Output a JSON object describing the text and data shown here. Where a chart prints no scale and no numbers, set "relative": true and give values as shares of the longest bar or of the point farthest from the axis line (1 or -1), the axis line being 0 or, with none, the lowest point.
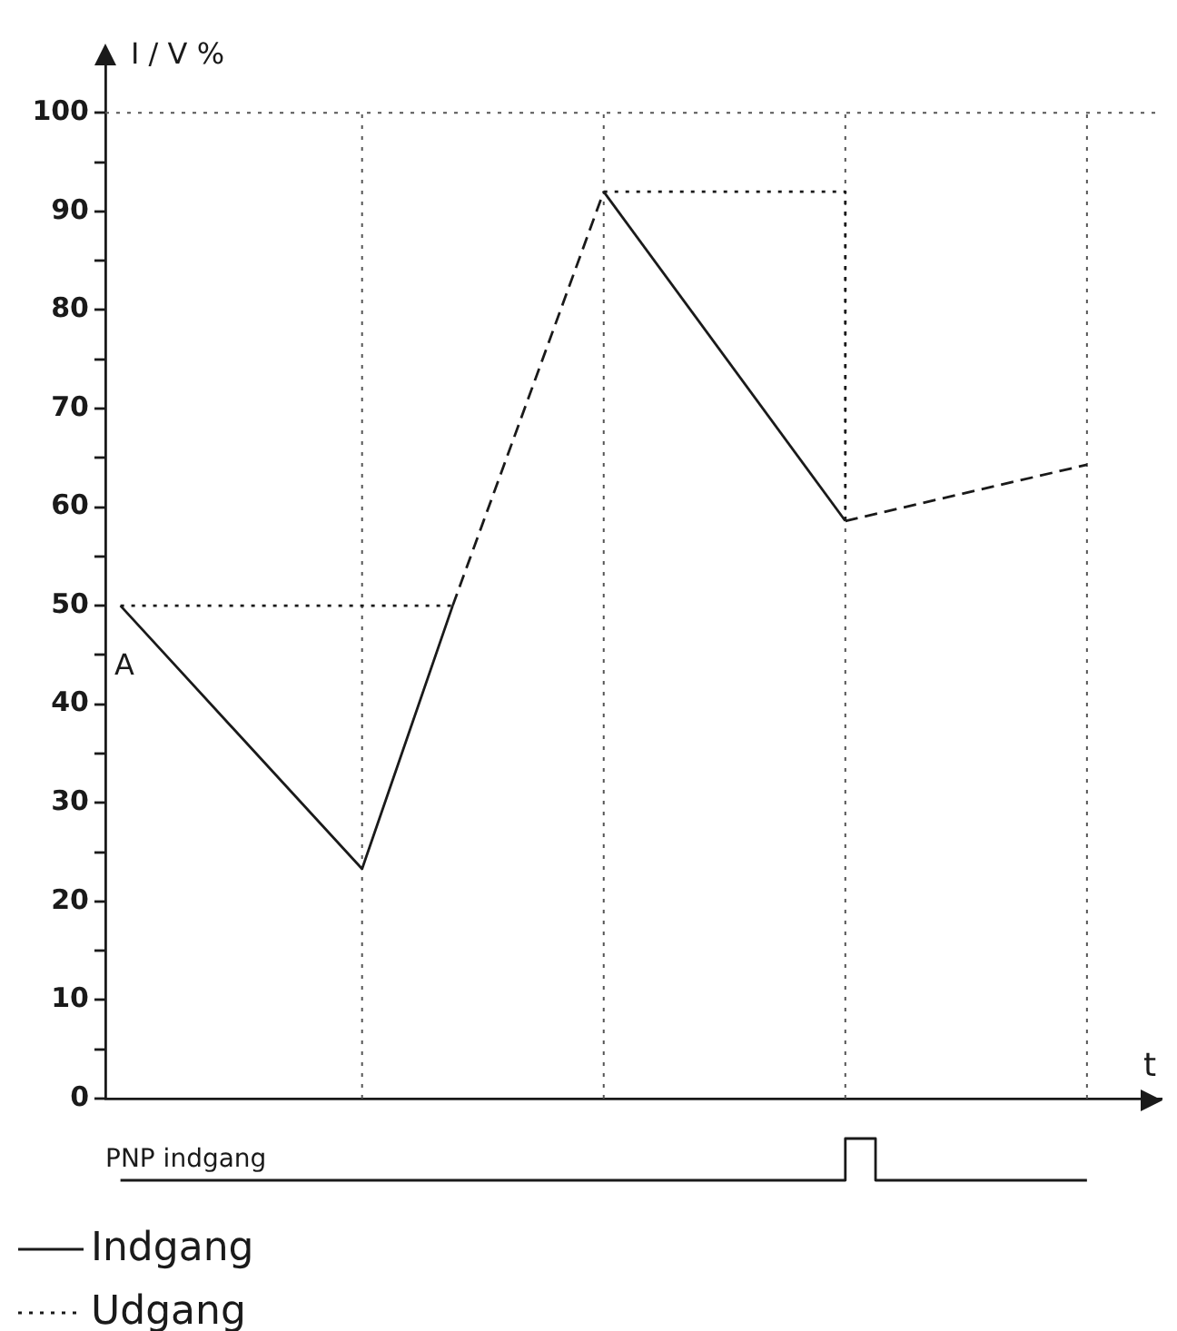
{
  "chart_data": [
    {
      "type": "line",
      "xlabel": "t",
      "ylabel": "I / V %",
      "ylim": [
        0,
        105
      ],
      "categories": [
        null,
        null,
        null,
        null,
        null,
        null,
        null,
        null,
        null,
        null,
        null,
        null,
        null,
        null,
        null,
        null,
        null,
        null,
        null,
        null,
        null,
        null,
        null,
        null,
        null,
        null,
        null,
        null,
        null,
        null,
        null,
        null,
        null,
        null,
        null
      ],
      "yticks": [
        0,
        {
          "value": 5,
          "label": null
        },
        10,
        {
          "value": 15,
          "label": null
        },
        20,
        {
          "value": 25,
          "label": null
        },
        30,
        {
          "value": 35,
          "label": null
        },
        40,
        {
          "value": 45,
          "label": null
        },
        50,
        {
          "value": 55,
          "label": null
        },
        60,
        {
          "value": 65,
          "label": null
        },
        70,
        {
          "value": 75,
          "label": null
        },
        80,
        {
          "value": 85,
          "label": null
        },
        90,
        {
          "value": 95,
          "label": null
        },
        100
      ],
      "tick_labels": "y",
      "grid": "x",
      "legend": "bottom left",
      "marker": "none",
      "series": [
        {
          "name": "Indgang",
          "color": "#1a1a1a",
          "line_style": "solid",
          "values": [
            50,
            null,
            null,
            null,
            null,
            null,
            null,
            null,
            23.3,
            null,
            null,
            50,
            null,
            null,
            null,
            null,
            null,
            null,
            null,
            null,
            null,
            null,
            null,
            null,
            null,
            null,
            null,
            null,
            null,
            null,
            null,
            null,
            null,
            null,
            null
          ]
        },
        {
          "color": "#1a1a1a",
          "line_style": "solid",
          "values": [
            null,
            null,
            null,
            null,
            null,
            null,
            null,
            null,
            null,
            null,
            null,
            null,
            null,
            null,
            null,
            null,
            92,
            null,
            null,
            null,
            null,
            null,
            null,
            null,
            58.6,
            null,
            null,
            null,
            null,
            null,
            null,
            null,
            null,
            null,
            null
          ]
        },
        {
          "name": "Udgang",
          "color": "#1a1a1a",
          "line_style": "dotted",
          "values": [
            50,
            null,
            null,
            null,
            null,
            null,
            null,
            null,
            null,
            null,
            null,
            50,
            null,
            null,
            null,
            null,
            null,
            null,
            null,
            null,
            null,
            null,
            null,
            null,
            null,
            null,
            null,
            null,
            null,
            null,
            null,
            null,
            null,
            null,
            null
          ]
        },
        {
          "type": "step",
          "color": "#1a1a1a",
          "line_style": "dotted",
          "values": [
            null,
            null,
            null,
            null,
            null,
            null,
            null,
            null,
            null,
            null,
            null,
            null,
            null,
            null,
            null,
            null,
            92,
            null,
            null,
            null,
            null,
            null,
            null,
            null,
            58.6,
            null,
            null,
            null,
            null,
            null,
            null,
            null,
            null,
            null,
            null
          ]
        },
        {
          "color": "#1a1a1a",
          "line_style": "dashed",
          "values": [
            null,
            null,
            null,
            null,
            null,
            null,
            null,
            null,
            null,
            null,
            null,
            50,
            null,
            null,
            null,
            null,
            92,
            null,
            null,
            null,
            null,
            null,
            null,
            null,
            null,
            null,
            null,
            null,
            null,
            null,
            null,
            null,
            null,
            null,
            null
          ]
        },
        {
          "color": "#1a1a1a",
          "line_style": "dashed",
          "values": [
            null,
            null,
            null,
            null,
            null,
            null,
            null,
            null,
            null,
            null,
            null,
            null,
            null,
            null,
            null,
            null,
            null,
            null,
            null,
            null,
            null,
            null,
            null,
            null,
            58.6,
            null,
            null,
            null,
            null,
            null,
            null,
            null,
            64.3,
            null,
            null
          ]
        }
      ],
      "ref_lines": [
        {
          "axis": "y",
          "value": 100,
          "line_style": "dotted",
          "color": "#555555"
        }
      ],
      "annotations": [
        {
          "text": "A",
          "y": 50
        }
      ]
    },
    {
      "type": "step",
      "title": "PNP indgang",
      "relative": true,
      "tick_labels": false,
      "marker": "none",
      "categories": [
        null,
        null,
        null,
        null,
        null,
        null,
        null,
        null,
        null,
        null,
        null,
        null,
        null,
        null,
        null,
        null,
        null,
        null,
        null,
        null,
        null,
        null,
        null,
        null,
        null,
        null,
        null,
        null,
        null,
        null,
        null,
        null,
        null,
        null,
        null
      ],
      "series": [
        {
          "color": "#1a1a1a",
          "line_style": "solid",
          "values": [
            0,
            null,
            null,
            null,
            null,
            null,
            null,
            null,
            null,
            null,
            null,
            null,
            null,
            null,
            null,
            null,
            null,
            null,
            null,
            null,
            null,
            null,
            null,
            null,
            1,
            0,
            null,
            null,
            null,
            null,
            null,
            null,
            0,
            null,
            null
          ]
        }
      ]
    }
  ]
}
